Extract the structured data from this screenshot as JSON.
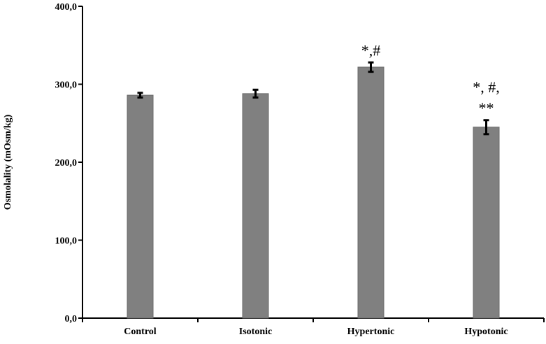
{
  "chart_data": {
    "type": "bar",
    "title": "",
    "xlabel": "",
    "ylabel": "Osmolality (mOsm/kg)",
    "ylim": [
      0,
      400
    ],
    "yticks": [
      "0,0",
      "100,0",
      "200,0",
      "300,0",
      "400,0"
    ],
    "ytick_values": [
      0,
      100,
      200,
      300,
      400
    ],
    "categories": [
      "Control",
      "Isotonic",
      "Hypertonic",
      "Hypotonic"
    ],
    "values": [
      286,
      288,
      322,
      245
    ],
    "errors": [
      3,
      5,
      6,
      9
    ],
    "annotations": [
      [
        ""
      ],
      [
        ""
      ],
      [
        "*,#"
      ],
      [
        "*, #,",
        "**"
      ]
    ],
    "grid": false,
    "legend": "none",
    "bar_color": "#808080",
    "error_color": "#000000"
  }
}
